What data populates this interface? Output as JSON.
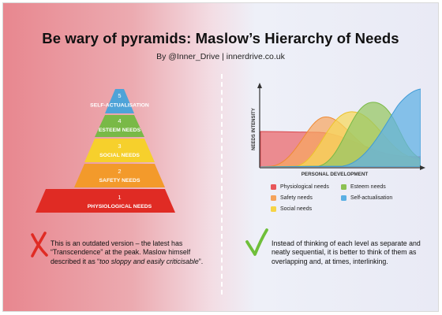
{
  "header": {
    "title": "Be wary of pyramids: Maslow’s Hierarchy of Needs",
    "byline": "By @Inner_Drive | innerdrive.co.uk"
  },
  "pyramid": {
    "levels": [
      {
        "number": "5",
        "label": "SELF-ACTUALISATION",
        "color": "#4ea3d8"
      },
      {
        "number": "4",
        "label": "ESTEEM NEEDS",
        "color": "#79b947"
      },
      {
        "number": "3",
        "label": "SOCIAL NEEDS",
        "color": "#f6d02c"
      },
      {
        "number": "2",
        "label": "SAFETY NEEDS",
        "color": "#f39a2b"
      },
      {
        "number": "1",
        "label": "PHYSIOLOGICAL NEEDS",
        "color": "#e02b24"
      }
    ]
  },
  "left_note": {
    "text_a": "This is an outdated version – the latest has “Transcendence” at the peak. Maslow himself described it as “",
    "text_emphasis": "too sloppy and easily criticisable",
    "text_b": "”.",
    "mark_color": "#e02b24"
  },
  "chart": {
    "ylabel": "NEEDS INTENSITY",
    "xlabel": "PERSONAL DEVELOPMENT"
  },
  "legend": {
    "items": [
      {
        "label": "Physiological needs",
        "color": "#e8565a"
      },
      {
        "label": "Esteem needs",
        "color": "#8cc152"
      },
      {
        "label": "Safety needs",
        "color": "#f5a35b"
      },
      {
        "label": "Self-actualisation",
        "color": "#5aafe3"
      },
      {
        "label": "Social needs",
        "color": "#f6d445"
      }
    ]
  },
  "right_note": {
    "text": "Instead of thinking of each level as separate and neatly sequential, it is better to think of them as overlapping and, at times, interlinking.",
    "mark_color": "#6fbf3a"
  }
}
